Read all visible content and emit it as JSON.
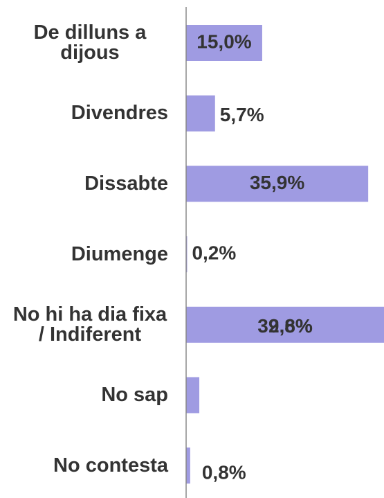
{
  "chart_data": {
    "type": "barh",
    "categories": [
      "De dilluns a dijous",
      "Divendres",
      "Dissabte",
      "Diumenge",
      "No hi ha dia fixa / Indiferent",
      "No sap",
      "No contesta"
    ],
    "values": [
      15.0,
      5.7,
      35.9,
      0.2,
      39.8,
      2.6,
      0.8
    ],
    "value_labels": [
      "15,0%",
      "5,7%",
      "35,9%",
      "0,2%",
      "39,8%",
      "2,6%",
      "0,8%"
    ],
    "color": "#9f9be2"
  }
}
